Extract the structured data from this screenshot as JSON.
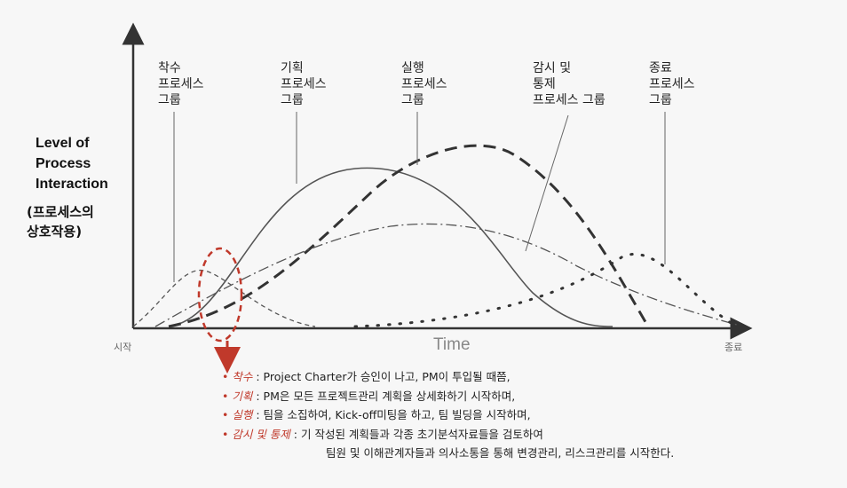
{
  "groups": {
    "initiating": "착수\n프로세스\n그룹",
    "planning": "기획\n프로세스\n그룹",
    "executing": "실행\n프로세스\n그룹",
    "monitoring": "감시 및\n통제\n프로세스 그룹",
    "closing": "종료\n프로세스\n그룹"
  },
  "y_axis": {
    "title": "Level of\nProcess\nInteraction",
    "subtitle": "(프로세스의\n상호작용)"
  },
  "x_axis": {
    "title": "Time",
    "start": "시작",
    "end": "종료"
  },
  "colors": {
    "highlight": "#c0392b",
    "curve": "#444444"
  },
  "notes": [
    {
      "term": "착수",
      "text": " : Project Charter가 승인이 나고, PM이 투입될 때쯤,"
    },
    {
      "term": "기획",
      "text": " : PM은 모든 프로젝트관리 계획을 상세화하기 시작하며,"
    },
    {
      "term": "실행",
      "text": " : 팀을 소집하여, Kick-off미팅을 하고, 팀 빌딩을 시작하며,"
    },
    {
      "term": "감시 및 통제",
      "text": " : 기 작성된 계획들과 각종 초기분석자료들을 검토하여"
    }
  ],
  "note_continuation": "팀원 및 이해관계자들과 의사소통을 통해 변경관리, 리스크관리를 시작한다."
}
